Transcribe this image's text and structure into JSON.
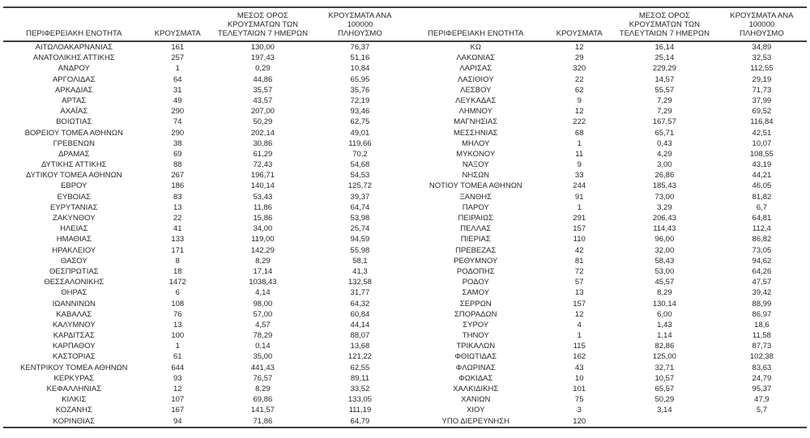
{
  "table": {
    "headers": {
      "region": "ΠΕΡΙΦΕΡΕΙΑΚΗ ΕΝΟΤΗΤΑ",
      "cases": "ΚΡΟΥΣΜΑΤΑ",
      "avg7": "ΜΕΣΟΣ ΟΡΟΣ\nΚΡΟΥΣΜΑΤΩΝ ΤΩΝ\nΤΕΛΕΥΤΑΙΩΝ 7 ΗΜΕΡΩΝ",
      "per100k": "ΚΡΟΥΣΜΑΤΑ ΑΝΑ 100000\nΠΛΗΘΥΣΜΟ"
    },
    "left_rows": [
      [
        "ΑΙΤΩΛΟΑΚΑΡΝΑΝΙΑΣ",
        "161",
        "130,00",
        "76,37"
      ],
      [
        "ΑΝΑΤΟΛΙΚΗΣ ΑΤΤΙΚΗΣ",
        "257",
        "197,43",
        "51,16"
      ],
      [
        "ΑΝΔΡΟΥ",
        "1",
        "0,29",
        "10,84"
      ],
      [
        "ΑΡΓΟΛΙΔΑΣ",
        "64",
        "44,86",
        "65,95"
      ],
      [
        "ΑΡΚΑΔΙΑΣ",
        "31",
        "35,57",
        "35,76"
      ],
      [
        "ΑΡΤΑΣ",
        "49",
        "43,57",
        "72,19"
      ],
      [
        "ΑΧΑΪΑΣ",
        "290",
        "207,00",
        "93,46"
      ],
      [
        "ΒΟΙΩΤΙΑΣ",
        "74",
        "50,29",
        "62,75"
      ],
      [
        "ΒΟΡΕΙΟΥ ΤΟΜΕΑ ΑΘΗΝΩΝ",
        "290",
        "202,14",
        "49,01"
      ],
      [
        "ΓΡΕΒΕΝΩΝ",
        "38",
        "30,86",
        "119,66"
      ],
      [
        "ΔΡΑΜΑΣ",
        "69",
        "61,29",
        "70,2"
      ],
      [
        "ΔΥΤΙΚΗΣ ΑΤΤΙΚΗΣ",
        "88",
        "72,43",
        "54,68"
      ],
      [
        "ΔΥΤΙΚΟΥ ΤΟΜΕΑ ΑΘΗΝΩΝ",
        "267",
        "196,71",
        "54,53"
      ],
      [
        "ΕΒΡΟΥ",
        "186",
        "140,14",
        "125,72"
      ],
      [
        "ΕΥΒΟΙΑΣ",
        "83",
        "53,43",
        "39,37"
      ],
      [
        "ΕΥΡΥΤΑΝΙΑΣ",
        "13",
        "11,86",
        "64,74"
      ],
      [
        "ΖΑΚΥΝΘΟΥ",
        "22",
        "15,86",
        "53,98"
      ],
      [
        "ΗΛΕΙΑΣ",
        "41",
        "34,00",
        "25,74"
      ],
      [
        "ΗΜΑΘΙΑΣ",
        "133",
        "119,00",
        "94,59"
      ],
      [
        "ΗΡΑΚΛΕΙΟΥ",
        "171",
        "142,29",
        "55,98"
      ],
      [
        "ΘΑΣΟΥ",
        "8",
        "8,29",
        "58,1"
      ],
      [
        "ΘΕΣΠΡΩΤΙΑΣ",
        "18",
        "17,14",
        "41,3"
      ],
      [
        "ΘΕΣΣΑΛΟΝΙΚΗΣ",
        "1472",
        "1038,43",
        "132,58"
      ],
      [
        "ΘΗΡΑΣ",
        "6",
        "4,14",
        "31,77"
      ],
      [
        "ΙΩΑΝΝΙΝΩΝ",
        "108",
        "98,00",
        "64,32"
      ],
      [
        "ΚΑΒΑΛΑΣ",
        "76",
        "57,00",
        "60,84"
      ],
      [
        "ΚΑΛΥΜΝΟΥ",
        "13",
        "4,57",
        "44,14"
      ],
      [
        "ΚΑΡΔΙΤΣΑΣ",
        "100",
        "78,29",
        "88,07"
      ],
      [
        "ΚΑΡΠΑΘΟΥ",
        "1",
        "0,14",
        "13,68"
      ],
      [
        "ΚΑΣΤΟΡΙΑΣ",
        "61",
        "35,00",
        "121,22"
      ],
      [
        "ΚΕΝΤΡΙΚΟΥ ΤΟΜΕΑ ΑΘΗΝΩΝ",
        "644",
        "441,43",
        "62,55"
      ],
      [
        "ΚΕΡΚΥΡΑΣ",
        "93",
        "76,57",
        "89,11"
      ],
      [
        "ΚΕΦΑΛΛΗΝΙΑΣ",
        "12",
        "8,29",
        "33,52"
      ],
      [
        "ΚΙΛΚΙΣ",
        "107",
        "69,86",
        "133,05"
      ],
      [
        "ΚΟΖΑΝΗΣ",
        "167",
        "141,57",
        "111,19"
      ],
      [
        "ΚΟΡΙΝΘΙΑΣ",
        "94",
        "71,86",
        "64,79"
      ]
    ],
    "right_rows": [
      [
        "ΚΩ",
        "12",
        "16,14",
        "34,89"
      ],
      [
        "ΛΑΚΩΝΙΑΣ",
        "29",
        "25,14",
        "32,53"
      ],
      [
        "ΛΑΡΙΣΑΣ",
        "320",
        "229,29",
        "112,55"
      ],
      [
        "ΛΑΣΙΘΙΟΥ",
        "22",
        "14,57",
        "29,19"
      ],
      [
        "ΛΕΣΒΟΥ",
        "62",
        "55,57",
        "71,73"
      ],
      [
        "ΛΕΥΚΑΔΑΣ",
        "9",
        "7,29",
        "37,99"
      ],
      [
        "ΛΗΜΝΟΥ",
        "12",
        "7,29",
        "69,52"
      ],
      [
        "ΜΑΓΝΗΣΙΑΣ",
        "222",
        "167,57",
        "116,84"
      ],
      [
        "ΜΕΣΣΗΝΙΑΣ",
        "68",
        "65,71",
        "42,51"
      ],
      [
        "ΜΗΛΟΥ",
        "1",
        "0,43",
        "10,07"
      ],
      [
        "ΜΥΚΟΝΟΥ",
        "11",
        "4,29",
        "108,55"
      ],
      [
        "ΝΑΞΟΥ",
        "9",
        "3,00",
        "43,19"
      ],
      [
        "ΝΗΣΩΝ",
        "33",
        "26,86",
        "44,21"
      ],
      [
        "ΝΟΤΙΟΥ ΤΟΜΕΑ ΑΘΗΝΩΝ",
        "244",
        "185,43",
        "46,05"
      ],
      [
        "ΞΑΝΘΗΣ",
        "91",
        "73,00",
        "81,82"
      ],
      [
        "ΠΑΡΟΥ",
        "1",
        "3,29",
        "6,7"
      ],
      [
        "ΠΕΙΡΑΙΩΣ",
        "291",
        "206,43",
        "64,81"
      ],
      [
        "ΠΕΛΛΑΣ",
        "157",
        "114,43",
        "112,4"
      ],
      [
        "ΠΙΕΡΙΑΣ",
        "110",
        "96,00",
        "86,82"
      ],
      [
        "ΠΡΕΒΕΖΑΣ",
        "42",
        "32,00",
        "73,05"
      ],
      [
        "ΡΕΘΥΜΝΟΥ",
        "81",
        "58,43",
        "94,62"
      ],
      [
        "ΡΟΔΟΠΗΣ",
        "72",
        "53,00",
        "64,26"
      ],
      [
        "ΡΟΔΟΥ",
        "57",
        "45,57",
        "47,57"
      ],
      [
        "ΣΑΜΟΥ",
        "13",
        "8,29",
        "39,42"
      ],
      [
        "ΣΕΡΡΩΝ",
        "157",
        "130,14",
        "88,99"
      ],
      [
        "ΣΠΟΡΑΔΩΝ",
        "12",
        "6,00",
        "86,97"
      ],
      [
        "ΣΥΡΟΥ",
        "4",
        "1,43",
        "18,6"
      ],
      [
        "ΤΗΝΟΥ",
        "1",
        "1,14",
        "11,58"
      ],
      [
        "ΤΡΙΚΑΛΩΝ",
        "115",
        "82,86",
        "87,73"
      ],
      [
        "ΦΘΙΩΤΙΔΑΣ",
        "162",
        "125,00",
        "102,38"
      ],
      [
        "ΦΛΩΡΙΝΑΣ",
        "43",
        "32,71",
        "83,63"
      ],
      [
        "ΦΩΚΙΔΑΣ",
        "10",
        "10,57",
        "24,79"
      ],
      [
        "ΧΑΛΚΙΔΙΚΗΣ",
        "101",
        "65,57",
        "95,37"
      ],
      [
        "ΧΑΝΙΩΝ",
        "75",
        "50,29",
        "47,9"
      ],
      [
        "ΧΙΟΥ",
        "3",
        "3,14",
        "5,7"
      ],
      [
        "ΥΠΟ ΔΙΕΡΕΥΝΗΣΗ",
        "120",
        "",
        ""
      ]
    ]
  }
}
